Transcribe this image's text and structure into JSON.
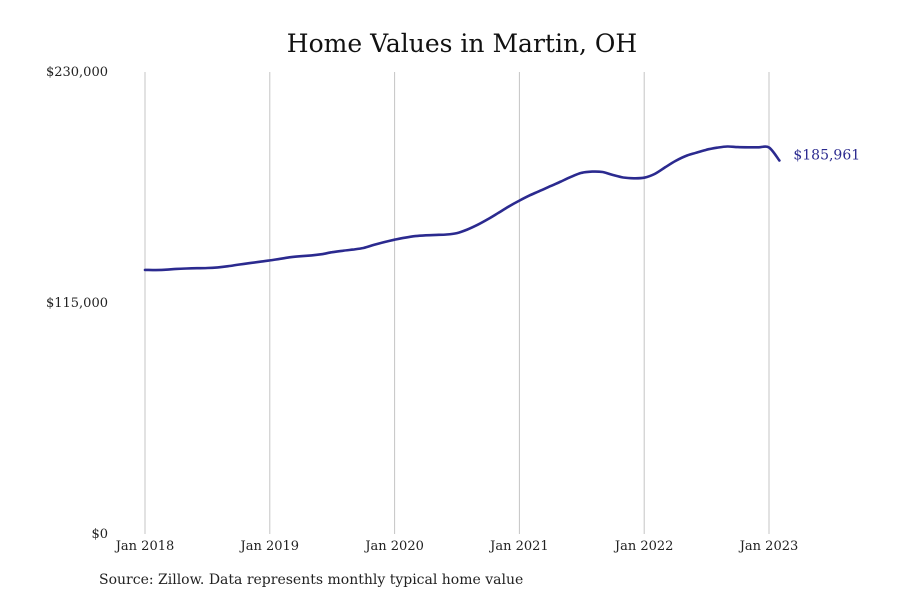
{
  "chart_data": {
    "type": "line",
    "title": "Home Values in Martin, OH",
    "xlabel": "",
    "ylabel": "",
    "ylim": [
      0,
      230000
    ],
    "y_ticks": [
      {
        "value": 0,
        "label": "$0"
      },
      {
        "value": 115000,
        "label": "$115,000"
      },
      {
        "value": 230000,
        "label": "$230,000"
      }
    ],
    "x_ticks": [
      {
        "value": 2018.0,
        "label": "Jan 2018"
      },
      {
        "value": 2019.0,
        "label": "Jan 2019"
      },
      {
        "value": 2020.0,
        "label": "Jan 2020"
      },
      {
        "value": 2021.0,
        "label": "Jan 2021"
      },
      {
        "value": 2022.0,
        "label": "Jan 2022"
      },
      {
        "value": 2023.0,
        "label": "Jan 2023"
      }
    ],
    "xlim": [
      2018.0,
      2023.0
    ],
    "grid": "vertical",
    "line_color": "#2b2a8f",
    "end_label": "$185,961",
    "series": [
      {
        "x": [
          2018.0,
          2018.083,
          2018.167,
          2018.25,
          2018.333,
          2018.417,
          2018.5,
          2018.583,
          2018.667,
          2018.75,
          2018.833,
          2018.917,
          2019.0,
          2019.083,
          2019.167,
          2019.25,
          2019.333,
          2019.417,
          2019.5,
          2019.583,
          2019.667,
          2019.75,
          2019.833,
          2019.917,
          2020.0,
          2020.083,
          2020.167,
          2020.25,
          2020.333,
          2020.417,
          2020.5,
          2020.583,
          2020.667,
          2020.75,
          2020.833,
          2020.917,
          2021.0,
          2021.083,
          2021.167,
          2021.25,
          2021.333,
          2021.417,
          2021.5,
          2021.583,
          2021.667,
          2021.75,
          2021.833,
          2021.917,
          2022.0,
          2022.083,
          2022.167,
          2022.25,
          2022.333,
          2022.417,
          2022.5,
          2022.583,
          2022.667,
          2022.75,
          2022.833,
          2022.917,
          2023.0,
          2023.083
        ],
        "values": [
          131500,
          131400,
          131600,
          132000,
          132200,
          132300,
          132400,
          132700,
          133300,
          134100,
          134800,
          135500,
          136200,
          137000,
          137800,
          138300,
          138700,
          139300,
          140300,
          141000,
          141600,
          142400,
          143900,
          145300,
          146500,
          147500,
          148300,
          148700,
          148900,
          149100,
          149800,
          151600,
          154000,
          156800,
          159900,
          163100,
          166000,
          168600,
          170900,
          173200,
          175500,
          177900,
          179800,
          180400,
          180200,
          178700,
          177500,
          177100,
          177400,
          179200,
          182500,
          185700,
          188200,
          189800,
          191300,
          192300,
          192900,
          192600,
          192500,
          192500,
          192400,
          185961
        ]
      }
    ]
  },
  "source_text": "Source: Zillow. Data represents monthly typical home value"
}
